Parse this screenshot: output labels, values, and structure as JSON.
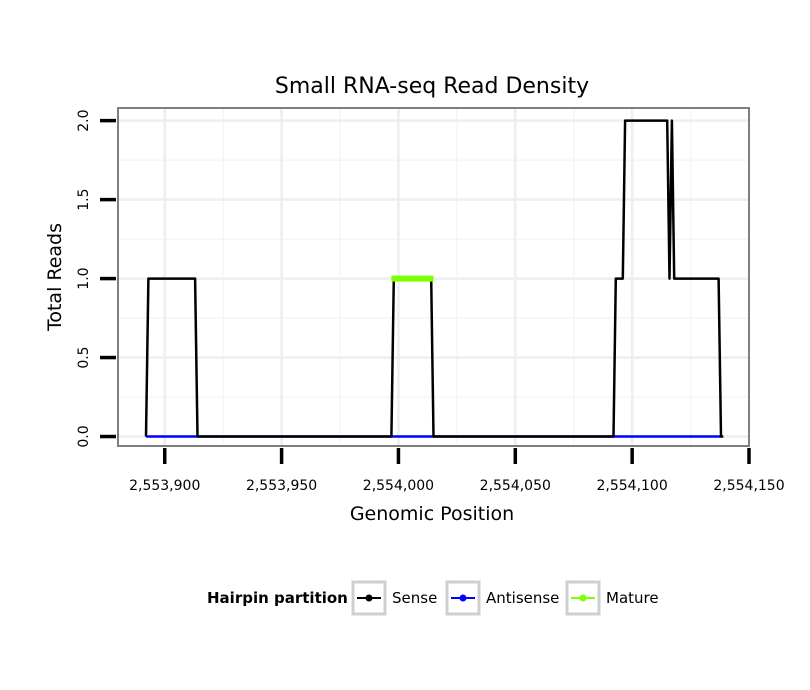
{
  "chart_data": {
    "type": "line",
    "title": "Small RNA-seq Read Density",
    "xlabel": "Genomic Position",
    "ylabel": "Total Reads",
    "xlim": [
      2553880,
      2554150
    ],
    "ylim": [
      -0.06,
      2.08
    ],
    "x_ticks": [
      2553900,
      2553950,
      2554000,
      2554050,
      2554100,
      2554150
    ],
    "x_tick_labels": [
      "2,553,900",
      "2,553,950",
      "2,554,000",
      "2,554,050",
      "2,554,100",
      "2,554,150"
    ],
    "y_ticks": [
      0.0,
      0.5,
      1.0,
      1.5,
      2.0
    ],
    "y_tick_labels": [
      "0.0",
      "0.5",
      "1.0",
      "1.5",
      "2.0"
    ],
    "grid": true,
    "legend": {
      "title": "Hairpin partition",
      "position": "bottom",
      "entries": [
        "Sense",
        "Antisense",
        "Mature"
      ]
    },
    "series": [
      {
        "name": "Sense",
        "color": "#000000",
        "x": [
          2553892,
          2553893,
          2553913,
          2553914,
          2553997,
          2553998,
          2554014,
          2554015,
          2554092,
          2554093,
          2554096,
          2554097,
          2554115,
          2554116,
          2554117,
          2554118,
          2554119,
          2554137,
          2554138,
          2554139
        ],
        "y": [
          0,
          1,
          1,
          0,
          0,
          1,
          1,
          0,
          0,
          1,
          1,
          2,
          2,
          1,
          2,
          1,
          1,
          1,
          0,
          0
        ]
      },
      {
        "name": "Antisense",
        "color": "#0000ff",
        "x": [
          2553892,
          2554138
        ],
        "y": [
          0,
          0
        ]
      },
      {
        "name": "Mature",
        "color": "#7fff00",
        "x": [
          2553997,
          2554015
        ],
        "y": [
          1,
          1
        ]
      }
    ]
  }
}
